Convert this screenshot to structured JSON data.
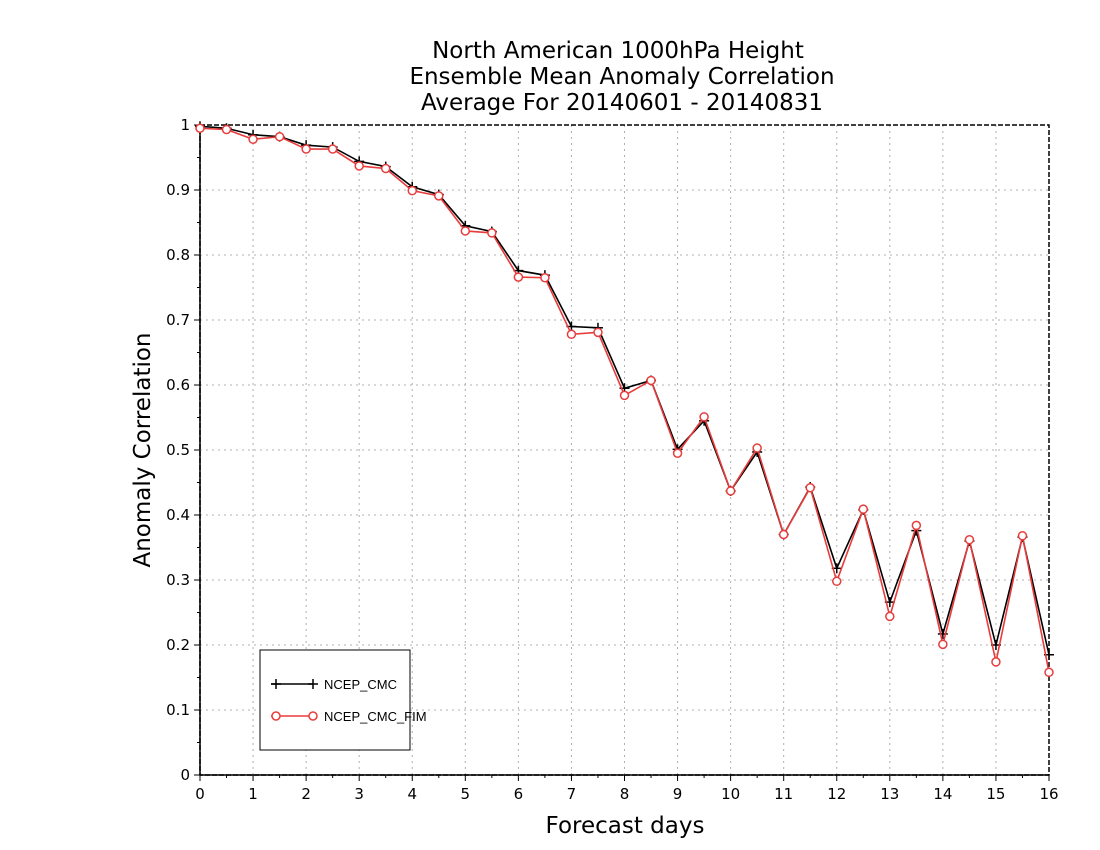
{
  "chart_data": {
    "type": "line",
    "title_lines": [
      "North American 1000hPa Height",
      "Ensemble Mean Anomaly Correlation",
      "Average For 20140601 - 20140831"
    ],
    "xlabel": "Forecast days",
    "ylabel": "Anomaly Correlation",
    "xlim": [
      0,
      16
    ],
    "ylim": [
      0,
      1
    ],
    "x_ticks": [
      "0",
      "1",
      "2",
      "3",
      "4",
      "5",
      "6",
      "7",
      "8",
      "9",
      "10",
      "11",
      "12",
      "13",
      "14",
      "15",
      "16"
    ],
    "y_ticks": [
      "0",
      "0.1",
      "0.2",
      "0.3",
      "0.4",
      "0.5",
      "0.6",
      "0.7",
      "0.8",
      "0.9",
      "1"
    ],
    "grid": true,
    "legend_position": "bottom-left",
    "x": [
      0,
      0.5,
      1,
      1.5,
      2,
      2.5,
      3,
      3.5,
      4,
      4.5,
      5,
      5.5,
      6,
      6.5,
      7,
      7.5,
      8,
      8.5,
      9,
      9.5,
      10,
      10.5,
      11,
      11.5,
      12,
      12.5,
      13,
      13.5,
      14,
      14.5,
      15,
      15.5,
      16
    ],
    "series": [
      {
        "name": "NCEP_CMC",
        "color": "#000000",
        "marker": "plus",
        "values": [
          0.998,
          0.995,
          0.985,
          0.982,
          0.969,
          0.966,
          0.944,
          0.936,
          0.905,
          0.893,
          0.845,
          0.836,
          0.776,
          0.769,
          0.69,
          0.688,
          0.595,
          0.607,
          0.501,
          0.545,
          0.437,
          0.497,
          0.37,
          0.443,
          0.318,
          0.408,
          0.266,
          0.376,
          0.217,
          0.36,
          0.2,
          0.366,
          0.185
        ]
      },
      {
        "name": "NCEP_CMC_FIM",
        "color": "#e83c3c",
        "marker": "circle",
        "values": [
          0.995,
          0.993,
          0.978,
          0.982,
          0.963,
          0.963,
          0.937,
          0.933,
          0.899,
          0.891,
          0.837,
          0.834,
          0.766,
          0.765,
          0.678,
          0.681,
          0.584,
          0.607,
          0.495,
          0.551,
          0.437,
          0.503,
          0.37,
          0.442,
          0.298,
          0.409,
          0.244,
          0.384,
          0.201,
          0.362,
          0.174,
          0.368,
          0.158
        ]
      }
    ]
  }
}
